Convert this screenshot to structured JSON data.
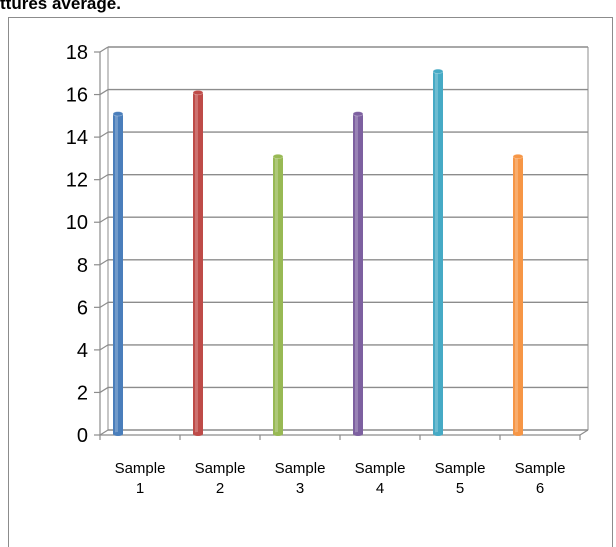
{
  "caption": "ttures average.",
  "chart_data": {
    "type": "bar",
    "categories": [
      [
        "Sample",
        "1"
      ],
      [
        "Sample",
        "2"
      ],
      [
        "Sample",
        "3"
      ],
      [
        "Sample",
        "4"
      ],
      [
        "Sample",
        "5"
      ],
      [
        "Sample",
        "6"
      ]
    ],
    "values": [
      15,
      16,
      13,
      15,
      17,
      13
    ],
    "colors": [
      "#4a7ebb",
      "#be4b48",
      "#98b954",
      "#7d60a0",
      "#46aac5",
      "#f69646"
    ],
    "yticks": [
      "0",
      "2",
      "4",
      "6",
      "8",
      "10",
      "12",
      "14",
      "16",
      "18"
    ],
    "ylim": [
      0,
      18
    ],
    "grid": true,
    "style": "3d-cylinder"
  }
}
